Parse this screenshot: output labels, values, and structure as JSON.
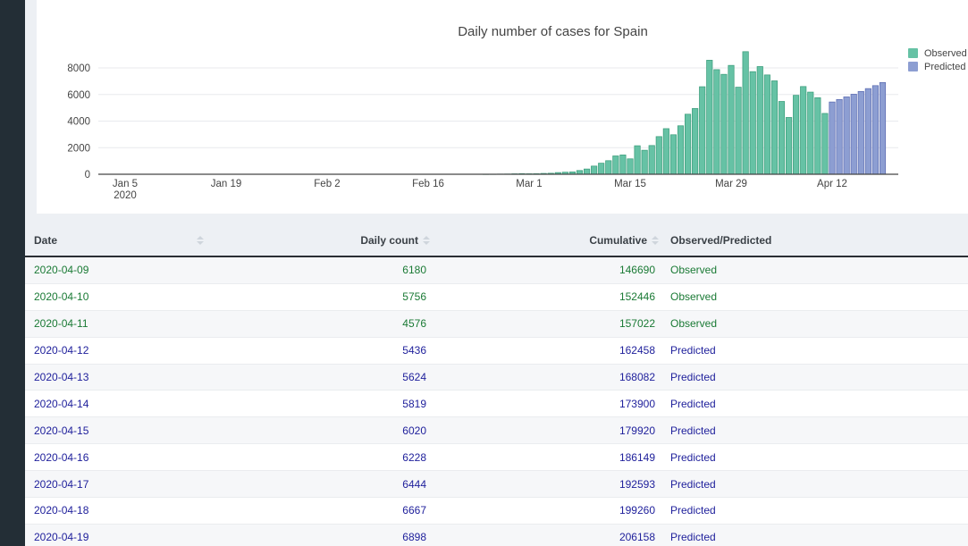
{
  "accent_colors": {
    "sidebar": "#232e36",
    "page_background": "#edf0f4",
    "card_background": "#ffffff"
  },
  "chart_data": {
    "type": "bar",
    "title": "Daily number of cases for Spain",
    "legend_position": "top-right",
    "grid": "horizontal",
    "x_axis": {
      "range": [
        "2020-01-05",
        "2020-04-19"
      ],
      "ticks": [
        {
          "date": "2020-01-05",
          "label": "Jan 5",
          "sub": "2020"
        },
        {
          "date": "2020-01-19",
          "label": "Jan 19"
        },
        {
          "date": "2020-02-02",
          "label": "Feb 2"
        },
        {
          "date": "2020-02-16",
          "label": "Feb 16"
        },
        {
          "date": "2020-03-01",
          "label": "Mar 1"
        },
        {
          "date": "2020-03-15",
          "label": "Mar 15"
        },
        {
          "date": "2020-03-29",
          "label": "Mar 29"
        },
        {
          "date": "2020-04-12",
          "label": "Apr 12"
        }
      ]
    },
    "y_axis": {
      "ticks": [
        0,
        2000,
        4000,
        6000,
        8000
      ],
      "range": [
        0,
        9400
      ]
    },
    "series": [
      {
        "name": "Observed",
        "color": "#66c2a5",
        "line_color": "#3d9e7c",
        "note": "values before 2020-04-09 estimated from bar heights",
        "x": [
          "2020-02-24",
          "2020-02-25",
          "2020-02-26",
          "2020-02-27",
          "2020-02-28",
          "2020-02-29",
          "2020-03-01",
          "2020-03-02",
          "2020-03-03",
          "2020-03-04",
          "2020-03-05",
          "2020-03-06",
          "2020-03-07",
          "2020-03-08",
          "2020-03-09",
          "2020-03-10",
          "2020-03-11",
          "2020-03-12",
          "2020-03-13",
          "2020-03-14",
          "2020-03-15",
          "2020-03-16",
          "2020-03-17",
          "2020-03-18",
          "2020-03-19",
          "2020-03-20",
          "2020-03-21",
          "2020-03-22",
          "2020-03-23",
          "2020-03-24",
          "2020-03-25",
          "2020-03-26",
          "2020-03-27",
          "2020-03-28",
          "2020-03-29",
          "2020-03-30",
          "2020-03-31",
          "2020-04-01",
          "2020-04-02",
          "2020-04-03",
          "2020-04-04",
          "2020-04-05",
          "2020-04-06",
          "2020-04-07",
          "2020-04-08",
          "2020-04-09",
          "2020-04-10",
          "2020-04-11"
        ],
        "y": [
          5,
          8,
          13,
          18,
          33,
          46,
          37,
          42,
          63,
          76,
          126,
          155,
          174,
          281,
          394,
          615,
          832,
          1021,
          1378,
          1452,
          1159,
          2144,
          1806,
          2162,
          2833,
          3431,
          2971,
          3646,
          4517,
          4946,
          6584,
          8578,
          7871,
          7516,
          8189,
          6549,
          9222,
          7719,
          8102,
          7472,
          7026,
          5478,
          4273,
          5939,
          6599,
          6180,
          5756,
          4576
        ]
      },
      {
        "name": "Predicted",
        "color": "#8d9ed2",
        "line_color": "#5c6cb2",
        "x": [
          "2020-04-12",
          "2020-04-13",
          "2020-04-14",
          "2020-04-15",
          "2020-04-16",
          "2020-04-17",
          "2020-04-18",
          "2020-04-19"
        ],
        "y": [
          5436,
          5624,
          5819,
          6020,
          6228,
          6444,
          6667,
          6898
        ]
      }
    ]
  },
  "table": {
    "columns": [
      {
        "label": "Date",
        "sortable": true
      },
      {
        "label": "Daily count",
        "sortable": true
      },
      {
        "label": "Cumulative",
        "sortable": true
      },
      {
        "label": "Observed/Predicted",
        "sortable": false
      }
    ],
    "status_colors": {
      "Observed": "#1a7a35",
      "Predicted": "#20219c"
    },
    "rows": [
      {
        "date": "2020-04-09",
        "daily": "6180",
        "cumulative": "146690",
        "status": "Observed"
      },
      {
        "date": "2020-04-10",
        "daily": "5756",
        "cumulative": "152446",
        "status": "Observed"
      },
      {
        "date": "2020-04-11",
        "daily": "4576",
        "cumulative": "157022",
        "status": "Observed"
      },
      {
        "date": "2020-04-12",
        "daily": "5436",
        "cumulative": "162458",
        "status": "Predicted"
      },
      {
        "date": "2020-04-13",
        "daily": "5624",
        "cumulative": "168082",
        "status": "Predicted"
      },
      {
        "date": "2020-04-14",
        "daily": "5819",
        "cumulative": "173900",
        "status": "Predicted"
      },
      {
        "date": "2020-04-15",
        "daily": "6020",
        "cumulative": "179920",
        "status": "Predicted"
      },
      {
        "date": "2020-04-16",
        "daily": "6228",
        "cumulative": "186149",
        "status": "Predicted"
      },
      {
        "date": "2020-04-17",
        "daily": "6444",
        "cumulative": "192593",
        "status": "Predicted"
      },
      {
        "date": "2020-04-18",
        "daily": "6667",
        "cumulative": "199260",
        "status": "Predicted"
      },
      {
        "date": "2020-04-19",
        "daily": "6898",
        "cumulative": "206158",
        "status": "Predicted"
      }
    ]
  }
}
